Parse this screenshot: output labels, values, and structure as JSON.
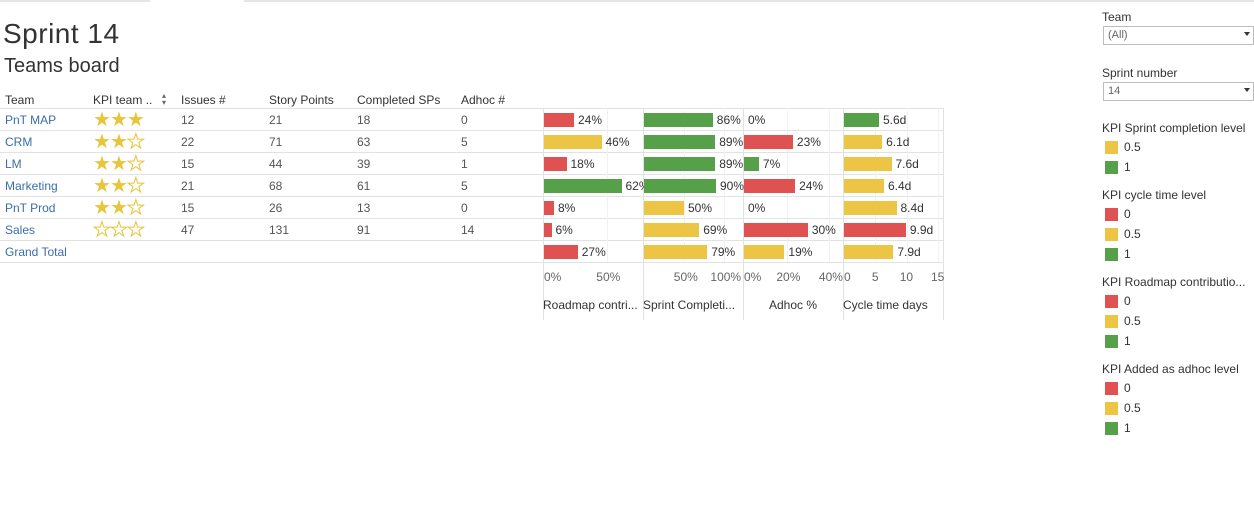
{
  "colors": {
    "red": "#e05252",
    "yellow": "#ecc544",
    "green": "#57a04a",
    "link": "#3b6ea8"
  },
  "header": {
    "title": "Sprint 14",
    "subtitle": "Teams board"
  },
  "table": {
    "columns": [
      "Team",
      "KPI team ..",
      "Issues #",
      "Story Points",
      "Completed SPs",
      "Adhoc #"
    ],
    "sort_icon": "sort-ascending-icon",
    "rows": [
      {
        "team": "PnT MAP",
        "stars": 3,
        "issues": "12",
        "story_points": "21",
        "completed": "18",
        "adhoc": "0"
      },
      {
        "team": "CRM",
        "stars": 2,
        "issues": "22",
        "story_points": "71",
        "completed": "63",
        "adhoc": "5"
      },
      {
        "team": "LM",
        "stars": 2,
        "issues": "15",
        "story_points": "44",
        "completed": "39",
        "adhoc": "1"
      },
      {
        "team": "Marketing",
        "stars": 2,
        "issues": "21",
        "story_points": "68",
        "completed": "61",
        "adhoc": "5"
      },
      {
        "team": "PnT Prod",
        "stars": 2,
        "issues": "15",
        "story_points": "26",
        "completed": "13",
        "adhoc": "0"
      },
      {
        "team": "Sales",
        "stars": 0,
        "issues": "47",
        "story_points": "131",
        "completed": "91",
        "adhoc": "14"
      },
      {
        "team": "Grand Total",
        "stars": null,
        "issues": "",
        "story_points": "",
        "completed": "",
        "adhoc": ""
      }
    ]
  },
  "chart_data": {
    "type": "bar",
    "categories": [
      "PnT MAP",
      "CRM",
      "LM",
      "Marketing",
      "PnT Prod",
      "Sales",
      "Grand Total"
    ],
    "series": [
      {
        "name": "Roadmap contri...",
        "unit": "%",
        "max": 80,
        "ticks": [
          "0%",
          "50%"
        ],
        "tick_values": [
          0,
          50
        ],
        "values": [
          24,
          46,
          18,
          62,
          8,
          6,
          27
        ],
        "labels": [
          "24%",
          "46%",
          "18%",
          "62%",
          "8%",
          "6%",
          "27%"
        ],
        "levels": [
          "red",
          "yellow",
          "red",
          "green",
          "red",
          "red",
          "red"
        ]
      },
      {
        "name": "Sprint Completi...",
        "unit": "%",
        "max": 125,
        "ticks": [
          "50%",
          "100%"
        ],
        "tick_values": [
          50,
          100
        ],
        "values": [
          86,
          89,
          89,
          90,
          50,
          69,
          79
        ],
        "labels": [
          "86%",
          "89%",
          "89%",
          "90%",
          "50%",
          "69%",
          "79%"
        ],
        "levels": [
          "green",
          "green",
          "green",
          "green",
          "yellow",
          "yellow",
          "yellow"
        ]
      },
      {
        "name": "Adhoc %",
        "unit": "%",
        "max": 47,
        "ticks": [
          "0%",
          "20%",
          "40%"
        ],
        "tick_values": [
          0,
          20,
          40
        ],
        "values": [
          0,
          23,
          7,
          24,
          0,
          30,
          19
        ],
        "labels": [
          "0%",
          "23%",
          "7%",
          "24%",
          "0%",
          "30%",
          "19%"
        ],
        "levels": [
          "green",
          "red",
          "green",
          "red",
          "green",
          "red",
          "yellow"
        ]
      },
      {
        "name": "Cycle time days",
        "unit": "d",
        "max": 16,
        "ticks": [
          "0",
          "5",
          "10",
          "15"
        ],
        "tick_values": [
          0,
          5,
          10,
          15
        ],
        "values": [
          5.6,
          6.1,
          7.6,
          6.4,
          8.4,
          9.9,
          7.9
        ],
        "labels": [
          "5.6d",
          "6.1d",
          "7.6d",
          "6.4d",
          "8.4d",
          "9.9d",
          "7.9d"
        ],
        "levels": [
          "green",
          "yellow",
          "yellow",
          "yellow",
          "yellow",
          "red",
          "yellow"
        ]
      }
    ]
  },
  "filters": {
    "team": {
      "label": "Team",
      "value": "(All)"
    },
    "sprint": {
      "label": "Sprint number",
      "value": "14"
    }
  },
  "legends": [
    {
      "title": "KPI Sprint completion level",
      "items": [
        {
          "color": "yellow",
          "label": "0.5"
        },
        {
          "color": "green",
          "label": "1"
        }
      ]
    },
    {
      "title": "KPI cycle time level",
      "items": [
        {
          "color": "red",
          "label": "0"
        },
        {
          "color": "yellow",
          "label": "0.5"
        },
        {
          "color": "green",
          "label": "1"
        }
      ]
    },
    {
      "title": "KPI Roadmap contributio...",
      "items": [
        {
          "color": "red",
          "label": "0"
        },
        {
          "color": "yellow",
          "label": "0.5"
        },
        {
          "color": "green",
          "label": "1"
        }
      ]
    },
    {
      "title": "KPI Added as adhoc level",
      "items": [
        {
          "color": "red",
          "label": "0"
        },
        {
          "color": "yellow",
          "label": "0.5"
        },
        {
          "color": "green",
          "label": "1"
        }
      ]
    }
  ]
}
